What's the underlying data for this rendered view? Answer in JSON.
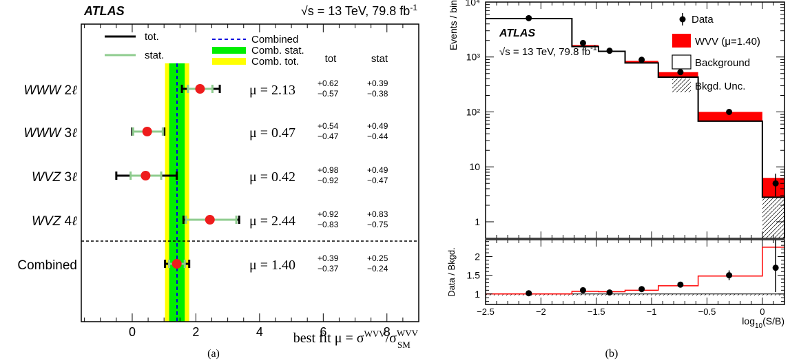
{
  "panel_a": {
    "label": "(a)",
    "atlas": "ATLAS",
    "energy": "√s = 13 TeV, 79.8 fb",
    "energy_sup": "-1",
    "legend": {
      "tot": "tot.",
      "stat": "stat.",
      "combined": "Combined",
      "comb_stat": "Comb. stat.",
      "comb_tot": "Comb. tot."
    },
    "col_headers": {
      "tot": "tot",
      "stat": "stat"
    },
    "xlabel_main": "best fit  μ = σ",
    "xlabel_sup1": "WVV",
    "xlabel_slash": "/σ",
    "xlabel_sup2": "WVV",
    "xlabel_sub2": "SM",
    "colors": {
      "marker": "#ee1c1c",
      "stat_bar": "#8fcc8f",
      "comb_stat": "#00ee00",
      "comb_tot": "#ffff00",
      "combined_line": "#0000dd"
    }
  },
  "panel_b": {
    "label": "(b)",
    "atlas": "ATLAS",
    "energy": "√s = 13 TeV, 79.8 fb",
    "energy_sup": "-1",
    "legend": {
      "data": "Data",
      "wvv": "WVV (μ=1.40)",
      "background": "Background",
      "bkg_unc": "Bkgd. Unc."
    },
    "ylabel_top": "Events / bin",
    "ylabel_bottom": "Data / Bkgd.",
    "xlabel": "log",
    "xlabel_sub": "10",
    "xlabel_rest": "(S/B)",
    "colors": {
      "signal": "#ff0000",
      "line": "#000000"
    }
  },
  "chart_data": [
    {
      "type": "scatter",
      "title": "",
      "xlabel": "best fit μ = σWVV/σWVV SM",
      "xlim": [
        -1.6,
        9.0
      ],
      "xticks": [
        0,
        2,
        4,
        6,
        8
      ],
      "series": [
        {
          "category": "WWW 2ℓ",
          "mu_text": "μ = 2.13",
          "mu": 2.13,
          "tot_up": "+0.62",
          "tot_dn": "−0.57",
          "stat_up": "+0.39",
          "stat_dn": "−0.38"
        },
        {
          "category": "WWW 3ℓ",
          "mu_text": "μ = 0.47",
          "mu": 0.47,
          "tot_up": "+0.54",
          "tot_dn": "−0.47",
          "stat_up": "+0.49",
          "stat_dn": "−0.44"
        },
        {
          "category": "WVZ 3ℓ",
          "mu_text": "μ = 0.42",
          "mu": 0.42,
          "tot_up": "+0.98",
          "tot_dn": "−0.92",
          "stat_up": "+0.49",
          "stat_dn": "−0.47"
        },
        {
          "category": "WVZ 4ℓ",
          "mu_text": "μ = 2.44",
          "mu": 2.44,
          "tot_up": "+0.92",
          "tot_dn": "−0.83",
          "stat_up": "+0.83",
          "stat_dn": "−0.75"
        },
        {
          "category": "Combined",
          "mu_text": "μ = 1.40",
          "mu": 1.4,
          "tot_up": "+0.39",
          "tot_dn": "−0.37",
          "stat_up": "+0.25",
          "stat_dn": "−0.24"
        }
      ]
    },
    {
      "type": "bar",
      "title": "",
      "xlabel": "log10(S/B)",
      "ylabel": "Events / bin",
      "log_y": true,
      "xlim": [
        -2.5,
        0.2
      ],
      "ylim": [
        0.5,
        10000
      ],
      "xticks": [
        -2.5,
        -2,
        -1.5,
        -1,
        -0.5,
        0
      ],
      "yticks": [
        {
          "v": 1,
          "l": "1"
        },
        {
          "v": 10,
          "l": "10"
        },
        {
          "v": 100,
          "l": "10²"
        },
        {
          "v": 1000,
          "l": "10³"
        },
        {
          "v": 10000,
          "l": "10⁴"
        }
      ],
      "bin_edges": [
        -2.5,
        -1.72,
        -1.48,
        -1.24,
        -0.94,
        -0.58,
        0.0,
        0.2
      ],
      "background": [
        5000,
        1550,
        1270,
        780,
        430,
        68,
        2.8
      ],
      "signal_top": [
        5000,
        1650,
        1300,
        850,
        530,
        100,
        6.3
      ],
      "data": [
        {
          "x": -2.11,
          "y": 5100
        },
        {
          "x": -1.62,
          "y": 1800
        },
        {
          "x": -1.38,
          "y": 1300
        },
        {
          "x": -1.09,
          "y": 890
        },
        {
          "x": -0.74,
          "y": 530
        },
        {
          "x": -0.3,
          "y": 100
        },
        {
          "x": 0.12,
          "y": 5,
          "err_lo": 2.9,
          "err_hi": 7.5
        }
      ]
    },
    {
      "type": "line",
      "title": "",
      "xlabel": "log10(S/B)",
      "ylabel": "Data / Bkgd.",
      "xlim": [
        -2.5,
        0.2
      ],
      "ylim": [
        0.72,
        2.45
      ],
      "yticks": [
        1,
        1.5,
        2
      ],
      "ratio_line": [
        1.0,
        1.07,
        1.06,
        1.1,
        1.22,
        1.48,
        2.25
      ],
      "data": [
        {
          "x": -2.11,
          "y": 1.02
        },
        {
          "x": -1.62,
          "y": 1.1
        },
        {
          "x": -1.38,
          "y": 1.04
        },
        {
          "x": -1.09,
          "y": 1.13
        },
        {
          "x": -0.74,
          "y": 1.25
        },
        {
          "x": -0.3,
          "y": 1.5,
          "err": 0.13
        },
        {
          "x": 0.12,
          "y": 1.7,
          "err_lo": 1.05,
          "err_hi": 2.6
        }
      ]
    }
  ]
}
